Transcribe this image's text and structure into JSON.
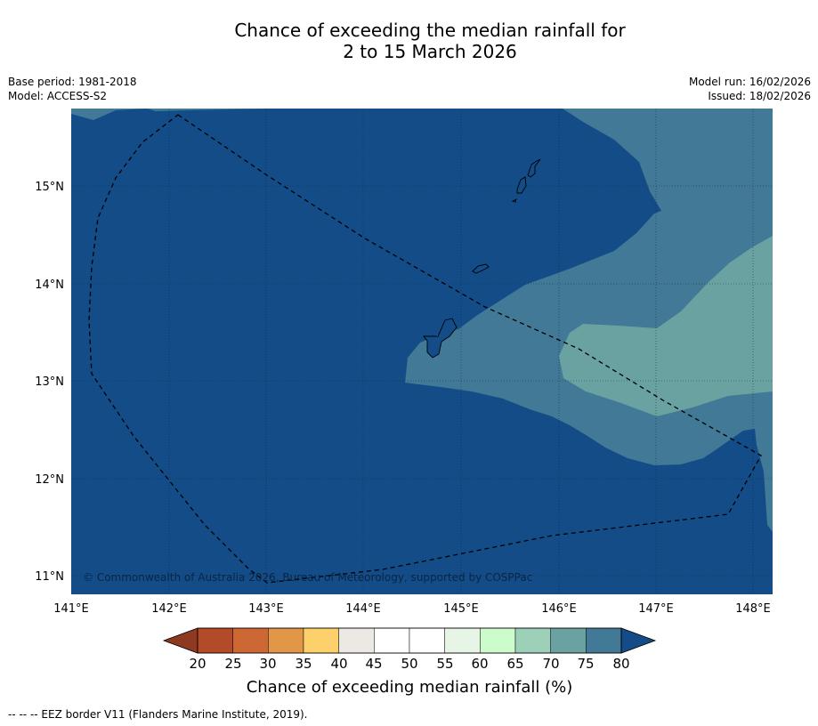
{
  "title": {
    "line1": "Chance of exceeding the median rainfall for",
    "line2": "2 to 15 March 2026"
  },
  "info_left": {
    "base_period": "Base period: 1981-2018",
    "model": "Model: ACCESS-S2"
  },
  "info_right": {
    "model_run": "Model run: 16/02/2026",
    "issued": "Issued: 18/02/2026"
  },
  "map": {
    "x_ticks": [
      "141°E",
      "142°E",
      "143°E",
      "144°E",
      "145°E",
      "146°E",
      "147°E",
      "148°E"
    ],
    "y_ticks": [
      "15°N",
      "14°N",
      "13°N",
      "12°N",
      "11°N"
    ],
    "copyright": "© Commonwealth of Australia 2026, Bureau of Meteorology, supported by COSPPac"
  },
  "colorbar": {
    "title": "Chance of exceeding median rainfall (%)",
    "tick_labels": [
      "20",
      "25",
      "30",
      "35",
      "40",
      "45",
      "50",
      "55",
      "60",
      "65",
      "70",
      "75",
      "80"
    ],
    "under_color": "#8e3a22",
    "over_color": "#144c87",
    "colors": [
      "#b34a2a",
      "#cd6733",
      "#e29748",
      "#fdd06b",
      "#ece8e4",
      "#ffffff",
      "#ffffff",
      "#e7f5e6",
      "#ccfccc",
      "#9dd0b8",
      "#6aa2a2",
      "#417996"
    ]
  },
  "colors": {
    "deep_blue": "#144c87",
    "mid_blue": "#417996",
    "teal": "#6aa2a2"
  },
  "footnote": "--  --  -- EEZ border V11 (Flanders Marine Institute, 2019)."
}
